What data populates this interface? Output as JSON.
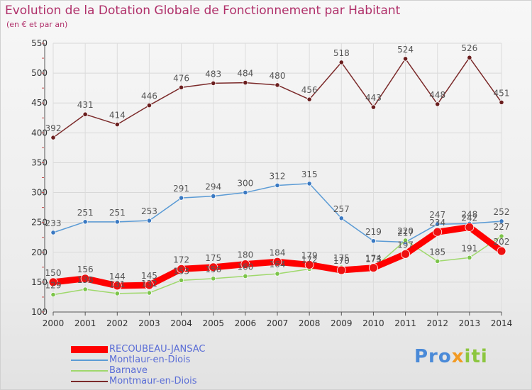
{
  "chart_data": {
    "type": "line",
    "title": "Evolution de la Dotation Globale de Fonctionnement par Habitant",
    "subtitle": "(en € et par an)",
    "xlabel": "",
    "ylabel": "",
    "ylim": [
      100,
      550
    ],
    "yticks": [
      100,
      150,
      200,
      250,
      300,
      350,
      400,
      450,
      500,
      550
    ],
    "categories": [
      "2000",
      "2001",
      "2002",
      "2003",
      "2004",
      "2005",
      "2006",
      "2007",
      "2008",
      "2009",
      "2010",
      "2011",
      "2012",
      "2013",
      "2014"
    ],
    "legend_position": "bottom-left",
    "series": [
      {
        "name": "RECOUBEAU-JANSAC",
        "color": "#ff0000",
        "dot": "#ee1111",
        "width": 9,
        "values": [
          150,
          156,
          144,
          145,
          172,
          175,
          180,
          184,
          179,
          170,
          174,
          197,
          234,
          242,
          202
        ],
        "labels": [
          "150",
          "156",
          "144",
          "145",
          "172",
          "175",
          "180",
          "184",
          "179",
          "170",
          "174",
          "197",
          "234",
          "242",
          "202"
        ]
      },
      {
        "name": "Montlaur-en-Diois",
        "color": "#5b9bd5",
        "dot": "#3a79c2",
        "width": 1.5,
        "values": [
          233,
          251,
          251,
          253,
          291,
          294,
          300,
          312,
          315,
          257,
          219,
          217,
          247,
          248,
          252
        ],
        "labels": [
          "233",
          "251",
          "251",
          "253",
          "291",
          "294",
          "300",
          "312",
          "315",
          "257",
          "219",
          "217",
          "247",
          "248",
          "252"
        ]
      },
      {
        "name": "Barnave",
        "color": "#9fd86c",
        "dot": "#7cc44a",
        "width": 1.5,
        "values": [
          129,
          138,
          131,
          132,
          153,
          156,
          160,
          164,
          172,
          175,
          173,
          220,
          185,
          191,
          227
        ],
        "labels": [
          "129",
          "138",
          "131",
          "132",
          "153",
          "156",
          "160",
          "164",
          "172",
          "175",
          "173",
          "220",
          "185",
          "191",
          "227"
        ]
      },
      {
        "name": "Montmaur-en-Diois",
        "color": "#7b2a2a",
        "dot": "#6a1e1e",
        "width": 1.5,
        "values": [
          392,
          431,
          414,
          446,
          476,
          483,
          484,
          480,
          456,
          518,
          443,
          524,
          448,
          526,
          451
        ],
        "labels": [
          "392",
          "431",
          "414",
          "446",
          "476",
          "483",
          "484",
          "480",
          "456",
          "518",
          "443",
          "524",
          "448",
          "526",
          "451"
        ]
      }
    ]
  },
  "logo": {
    "part1": "Pro",
    "part2": "x",
    "part3": "iti"
  }
}
